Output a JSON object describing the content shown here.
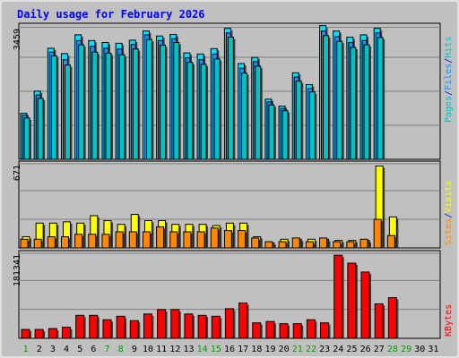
{
  "chart_data": {
    "type": "bar",
    "title": "Daily usage for February 2026",
    "days": [
      "1",
      "2",
      "3",
      "4",
      "5",
      "6",
      "7",
      "8",
      "9",
      "10",
      "11",
      "12",
      "13",
      "14",
      "15",
      "16",
      "17",
      "18",
      "19",
      "20",
      "21",
      "22",
      "23",
      "24",
      "25",
      "26",
      "27",
      "28",
      "29",
      "30",
      "31"
    ],
    "weekend_days": [
      1,
      7,
      8,
      14,
      15,
      21,
      22,
      28,
      29
    ],
    "top": {
      "ymax_label": "3459",
      "ymax": 3459,
      "right_label_parts": [
        "Pages",
        "/",
        "Files",
        "/",
        "Hits"
      ],
      "series": [
        {
          "name": "Hits",
          "values": [
            1200,
            1780,
            2900,
            2760,
            3250,
            3100,
            3050,
            3030,
            3110,
            3350,
            3220,
            3260,
            2780,
            2750,
            2890,
            3420,
            2500,
            2660,
            1570,
            1390,
            2260,
            1950,
            3490,
            3350,
            3190,
            3250,
            3420,
            0,
            0,
            0,
            0
          ]
        },
        {
          "name": "Files",
          "values": [
            1150,
            1680,
            2800,
            2600,
            3100,
            2950,
            2900,
            2880,
            3000,
            3250,
            3100,
            3150,
            2650,
            2600,
            2750,
            3300,
            2380,
            2550,
            1500,
            1330,
            2150,
            1850,
            3350,
            3200,
            3050,
            3100,
            3300,
            0,
            0,
            0,
            0
          ]
        },
        {
          "name": "Pages",
          "values": [
            1080,
            1590,
            2700,
            2460,
            2990,
            2800,
            2770,
            2730,
            2880,
            3130,
            2980,
            3050,
            2530,
            2480,
            2620,
            3190,
            2250,
            2430,
            1420,
            1270,
            2040,
            1760,
            3230,
            3080,
            2920,
            2990,
            3180,
            0,
            0,
            0,
            0
          ]
        }
      ]
    },
    "middle": {
      "ymax_label": "671",
      "ymax": 671,
      "right_label_parts": [
        "Sites",
        "/",
        "Visits"
      ],
      "series": [
        {
          "name": "Visits",
          "values": [
            90,
            200,
            200,
            210,
            200,
            260,
            220,
            190,
            270,
            220,
            220,
            190,
            190,
            190,
            180,
            200,
            200,
            90,
            40,
            70,
            70,
            70,
            70,
            60,
            60,
            60,
            660,
            250,
            0,
            0,
            0
          ]
        },
        {
          "name": "Sites",
          "values": [
            70,
            70,
            90,
            90,
            110,
            110,
            110,
            130,
            130,
            130,
            170,
            130,
            130,
            130,
            160,
            140,
            140,
            80,
            50,
            50,
            80,
            50,
            80,
            50,
            50,
            70,
            230,
            100,
            0,
            0,
            0
          ]
        }
      ]
    },
    "bottom": {
      "ymax_label": "181341",
      "ymax": 181341,
      "right_label_parts": [
        "KBytes"
      ],
      "series": [
        {
          "name": "KBytes",
          "values": [
            20000,
            20000,
            22000,
            25000,
            52000,
            52000,
            42000,
            50000,
            40000,
            55000,
            65000,
            65000,
            55000,
            52000,
            50000,
            67000,
            80000,
            35000,
            38000,
            33000,
            33000,
            42000,
            35000,
            188000,
            170000,
            150000,
            78000,
            92000,
            0,
            0,
            0
          ]
        }
      ]
    },
    "colors": {
      "background": "#c0c0c0",
      "title": "#0000ff",
      "hits": "#00e0ff",
      "files": "#1e90ff",
      "pages": "#00c4c4",
      "visits": "#ffff00",
      "sites": "#ff8800",
      "kbytes": "#ff0000",
      "slash": "#0000ff",
      "weekday": "#000000",
      "weekend": "#00a000",
      "grid": "#808080"
    }
  }
}
